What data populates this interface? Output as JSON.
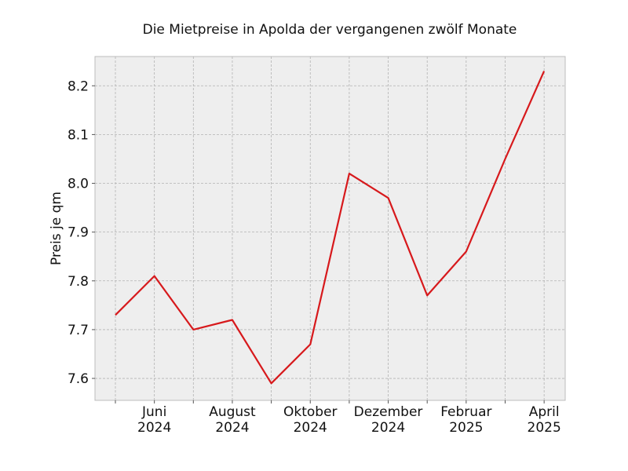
{
  "chart_data": {
    "type": "line",
    "title": "Die Mietpreise in Apolda der vergangenen zwölf Monate",
    "xlabel": "",
    "ylabel": "Preis je qm",
    "x": [
      "2024-05",
      "2024-06",
      "2024-07",
      "2024-08",
      "2024-09",
      "2024-10",
      "2024-11",
      "2024-12",
      "2025-01",
      "2025-02",
      "2025-03",
      "2025-04"
    ],
    "series": [
      {
        "values": [
          7.73,
          7.81,
          7.7,
          7.72,
          7.59,
          7.67,
          8.02,
          7.97,
          7.77,
          7.86,
          8.05,
          8.23
        ]
      }
    ],
    "x_tick_labels": [
      {
        "x": "2024-06",
        "line1": "Juni",
        "line2": "2024"
      },
      {
        "x": "2024-08",
        "line1": "August",
        "line2": "2024"
      },
      {
        "x": "2024-10",
        "line1": "Oktober",
        "line2": "2024"
      },
      {
        "x": "2024-12",
        "line1": "Dezember",
        "line2": "2024"
      },
      {
        "x": "2025-02",
        "line1": "Februar",
        "line2": "2025"
      },
      {
        "x": "2025-04",
        "line1": "April",
        "line2": "2025"
      }
    ],
    "y_ticks": [
      "7.6",
      "7.7",
      "7.8",
      "7.9",
      "8.0",
      "8.1",
      "8.2"
    ],
    "ylim": [
      7.555,
      8.26
    ],
    "grid": true,
    "line_color": "#d7191c",
    "background_color": "#eeeeee"
  }
}
